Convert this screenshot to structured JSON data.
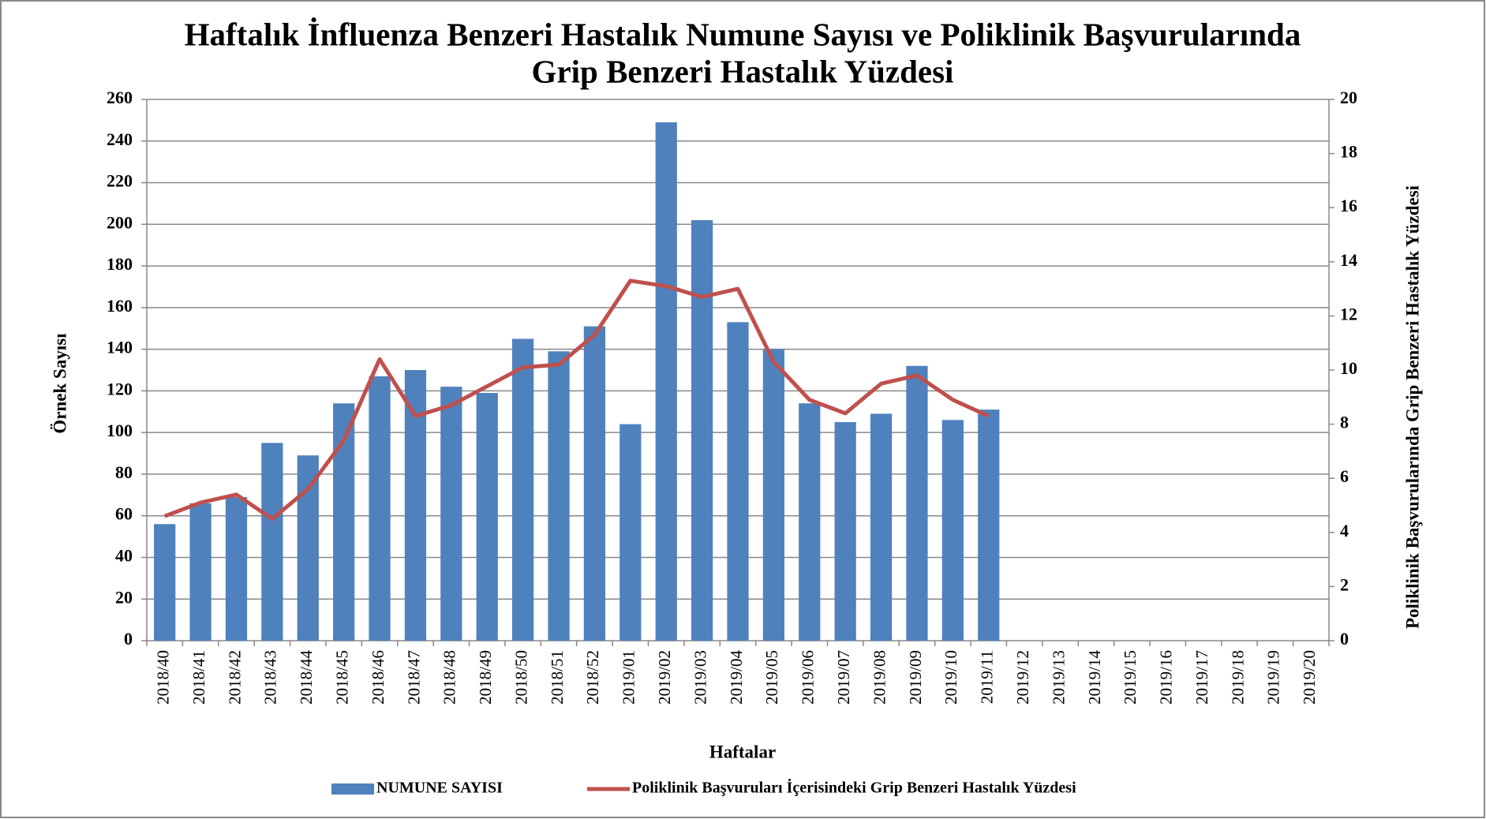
{
  "chart_data": {
    "type": "combo",
    "title": [
      "Haftalık İnfluenza Benzeri Hastalık Numune Sayısı ve Poliklinik Başvurularında",
      "Grip Benzeri Hastalık Yüzdesi"
    ],
    "x_label": "Haftalar",
    "y_label": "Örnek Sayısı",
    "y2_label": "Poliklinik Başvurularında Grip Benzeri Hastalık Yüzdesi",
    "categories": [
      "2018/40",
      "2018/41",
      "2018/42",
      "2018/43",
      "2018/44",
      "2018/45",
      "2018/46",
      "2018/47",
      "2018/48",
      "2018/49",
      "2018/50",
      "2018/51",
      "2018/52",
      "2019/01",
      "2019/02",
      "2019/03",
      "2019/04",
      "2019/05",
      "2019/06",
      "2019/07",
      "2019/08",
      "2019/09",
      "2019/10",
      "2019/11",
      "2019/12",
      "2019/13",
      "2019/14",
      "2019/15",
      "2019/16",
      "2019/17",
      "2019/18",
      "2019/19",
      "2019/20"
    ],
    "series": [
      {
        "name": "NUMUNE SAYISI",
        "type": "bar",
        "color": "#4f81bd",
        "values": [
          56,
          66,
          69,
          95,
          89,
          114,
          127,
          130,
          122,
          119,
          145,
          139,
          151,
          104,
          249,
          202,
          153,
          140,
          114,
          105,
          109,
          132,
          106,
          111,
          null,
          null,
          null,
          null,
          null,
          null,
          null,
          null,
          null
        ]
      },
      {
        "name": "Poliklinik Başvuruları İçerisindeki Grip Benzeri Hastalık Yüzdesi",
        "type": "line",
        "axis": "y2",
        "color": "#c0504d",
        "values": [
          4.6,
          5.1,
          5.4,
          4.5,
          5.6,
          7.4,
          10.4,
          8.3,
          8.7,
          9.4,
          10.1,
          10.2,
          11.3,
          13.3,
          13.1,
          12.7,
          13.0,
          10.3,
          8.9,
          8.4,
          9.5,
          9.8,
          8.9,
          8.3,
          null,
          null,
          null,
          null,
          null,
          null,
          null,
          null,
          null
        ]
      }
    ],
    "ylim": [
      0,
      260
    ],
    "yticks": [
      0,
      20,
      40,
      60,
      80,
      100,
      120,
      140,
      160,
      180,
      200,
      220,
      240,
      260
    ],
    "y2lim": [
      0,
      20
    ],
    "y2ticks": [
      0,
      2,
      4,
      6,
      8,
      10,
      12,
      14,
      16,
      18,
      20
    ],
    "grid": true,
    "legend": "bottom"
  }
}
